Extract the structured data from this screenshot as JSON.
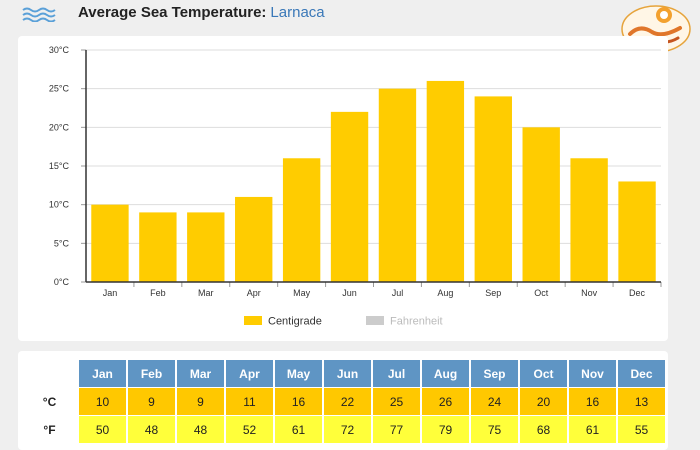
{
  "header": {
    "title_main": "Average Sea Temperature:",
    "title_place": "Larnaca"
  },
  "colors": {
    "bar": "#ffcc00",
    "celsius_row": "#ffc800",
    "fahrenheit_row": "#ffff3a",
    "month_header": "#5f95c4"
  },
  "legend": {
    "centigrade": "Centigrade",
    "fahrenheit": "Fahrenheit"
  },
  "table": {
    "row_label_c": "°C",
    "row_label_f": "°F",
    "months": [
      "Jan",
      "Feb",
      "Mar",
      "Apr",
      "May",
      "Jun",
      "Jul",
      "Aug",
      "Sep",
      "Oct",
      "Nov",
      "Dec"
    ],
    "celsius": [
      10,
      9,
      9,
      11,
      16,
      22,
      25,
      26,
      24,
      20,
      16,
      13
    ],
    "fahrenheit": [
      50,
      48,
      48,
      52,
      61,
      72,
      77,
      79,
      75,
      68,
      61,
      55
    ]
  },
  "chart_data": {
    "type": "bar",
    "categories": [
      "Jan",
      "Feb",
      "Mar",
      "Apr",
      "May",
      "Jun",
      "Jul",
      "Aug",
      "Sep",
      "Oct",
      "Nov",
      "Dec"
    ],
    "series": [
      {
        "name": "Centigrade",
        "values": [
          10,
          9,
          9,
          11,
          16,
          22,
          25,
          26,
          24,
          20,
          16,
          13
        ]
      }
    ],
    "ylim": [
      0,
      30
    ],
    "yticks": [
      "0°C",
      "5°C",
      "10°C",
      "15°C",
      "20°C",
      "25°C",
      "30°C"
    ],
    "grid": true,
    "legend_position": "bottom"
  }
}
